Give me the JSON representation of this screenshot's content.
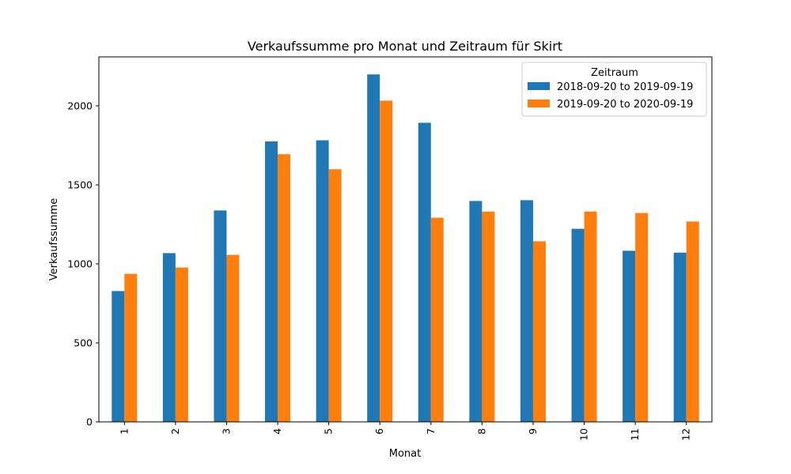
{
  "chart_data": {
    "type": "bar",
    "title": "Verkaufssumme pro Monat und Zeitraum für Skirt",
    "xlabel": "Monat",
    "ylabel": "Verkaufssumme",
    "categories": [
      "1",
      "2",
      "3",
      "4",
      "5",
      "6",
      "7",
      "8",
      "9",
      "10",
      "11",
      "12"
    ],
    "series": [
      {
        "name": "2018-09-20 to 2019-09-19",
        "color": "#1f77b4",
        "values": [
          828,
          1068,
          1338,
          1775,
          1782,
          2199,
          1893,
          1398,
          1403,
          1222,
          1083,
          1071
        ]
      },
      {
        "name": "2019-09-20 to 2020-09-19",
        "color": "#ff7f0e",
        "values": [
          937,
          977,
          1057,
          1694,
          1599,
          2033,
          1292,
          1331,
          1143,
          1331,
          1322,
          1268
        ]
      }
    ],
    "ylim": [
      0,
      2310
    ],
    "yticks": [
      0,
      500,
      1000,
      1500,
      2000
    ],
    "grid": false,
    "legend": {
      "title": "Zeitraum",
      "placement": "top-right"
    }
  }
}
